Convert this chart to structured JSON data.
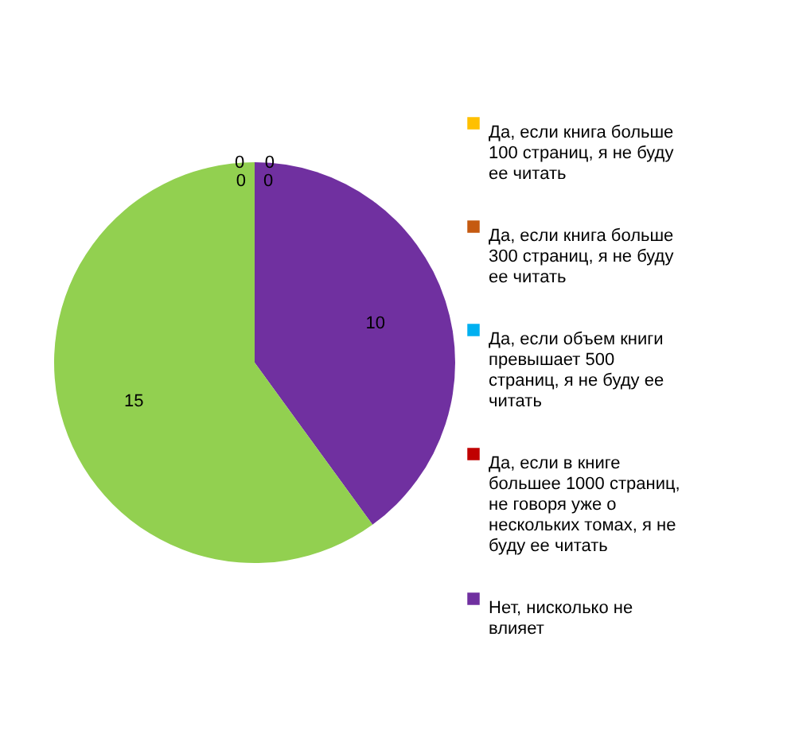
{
  "chart_data": {
    "type": "pie",
    "categories": [
      "Да, если книга больше 100 страниц, я не буду ее читать",
      "Да, если книга больше 300 страниц, я не буду ее читать",
      "Да, если объем книги превышает 500 страниц, я не буду ее читать",
      "Да, если в книге большее 1000 страниц, не говоря уже о нескольких томах, я не буду ее читать",
      "Нет, нисколько не влияет",
      null
    ],
    "values": [
      0,
      0,
      0,
      0,
      10,
      15
    ],
    "colors": [
      "#ffc000",
      "#c55a11",
      "#00b0f0",
      "#c00000",
      "#7030a0",
      "#92d050"
    ],
    "value_labels": [
      "0",
      "0",
      "0",
      "0",
      "10",
      "15"
    ],
    "legend": "right"
  }
}
